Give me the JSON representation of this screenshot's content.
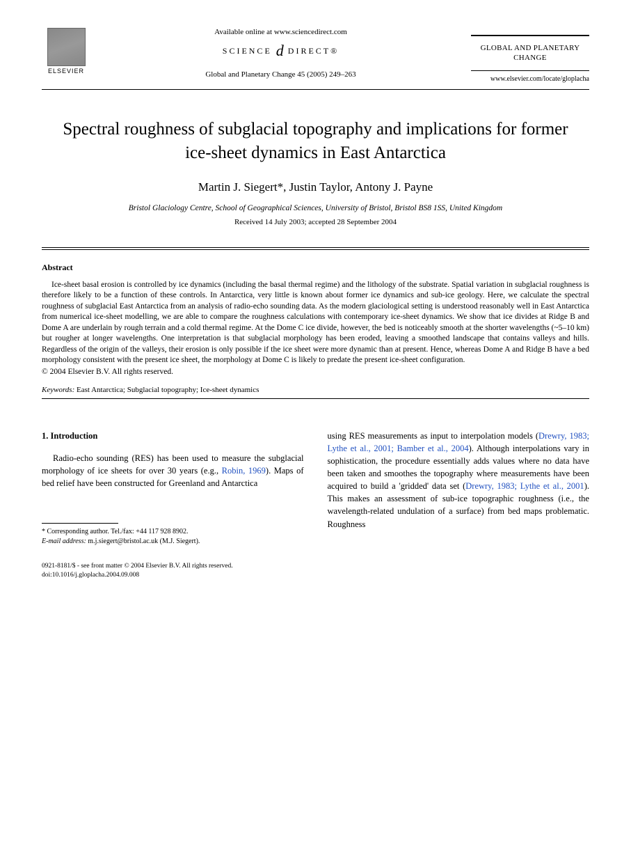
{
  "header": {
    "publisher_name": "ELSEVIER",
    "available_online": "Available online at www.sciencedirect.com",
    "science_direct_left": "SCIENCE",
    "science_direct_right": "DIRECT®",
    "citation": "Global and Planetary Change 45 (2005) 249–263",
    "journal_name": "GLOBAL AND PLANETARY CHANGE",
    "journal_url": "www.elsevier.com/locate/gloplacha"
  },
  "article": {
    "title": "Spectral roughness of subglacial topography and implications for former ice-sheet dynamics in East Antarctica",
    "authors": "Martin J. Siegert*, Justin Taylor, Antony J. Payne",
    "affiliation": "Bristol Glaciology Centre, School of Geographical Sciences, University of Bristol, Bristol BS8 1SS, United Kingdom",
    "dates": "Received 14 July 2003; accepted 28 September 2004"
  },
  "abstract": {
    "heading": "Abstract",
    "body": "Ice-sheet basal erosion is controlled by ice dynamics (including the basal thermal regime) and the lithology of the substrate. Spatial variation in subglacial roughness is therefore likely to be a function of these controls. In Antarctica, very little is known about former ice dynamics and sub-ice geology. Here, we calculate the spectral roughness of subglacial East Antarctica from an analysis of radio-echo sounding data. As the modern glaciological setting is understood reasonably well in East Antarctica from numerical ice-sheet modelling, we are able to compare the roughness calculations with contemporary ice-sheet dynamics. We show that ice divides at Ridge B and Dome A are underlain by rough terrain and a cold thermal regime. At the Dome C ice divide, however, the bed is noticeably smooth at the shorter wavelengths (~5–10 km) but rougher at longer wavelengths. One interpretation is that subglacial morphology has been eroded, leaving a smoothed landscape that contains valleys and hills. Regardless of the origin of the valleys, their erosion is only possible if the ice sheet were more dynamic than at present. Hence, whereas Dome A and Ridge B have a bed morphology consistent with the present ice sheet, the morphology at Dome C is likely to predate the present ice-sheet configuration.",
    "copyright": "© 2004 Elsevier B.V. All rights reserved.",
    "keywords_label": "Keywords:",
    "keywords": " East Antarctica; Subglacial topography; Ice-sheet dynamics"
  },
  "body": {
    "section_heading": "1. Introduction",
    "col1_para1_pre": "Radio-echo sounding (RES) has been used to measure the subglacial morphology of ice sheets for over 30 years (e.g., ",
    "col1_cite1": "Robin, 1969",
    "col1_para1_post": "). Maps of bed relief have been constructed for Greenland and Antarctica",
    "col2_pre": "using RES measurements as input to interpolation models (",
    "col2_cite1": "Drewry, 1983; Lythe et al., 2001; Bamber et al., 2004",
    "col2_mid1": "). Although interpolations vary in sophistication, the procedure essentially adds values where no data have been taken and smoothes the topography where measurements have been acquired to build a 'gridded' data set (",
    "col2_cite2": "Drewry, 1983; Lythe et al., 2001",
    "col2_post": "). This makes an assessment of sub-ice topographic roughness (i.e., the wavelength-related undulation of a surface) from bed maps problematic. Roughness"
  },
  "footnotes": {
    "corresponding": "* Corresponding author. Tel./fax: +44 117 928 8902.",
    "email_label": "E-mail address:",
    "email": " m.j.siegert@bristol.ac.uk (M.J. Siegert)."
  },
  "footer": {
    "line1": "0921-8181/$ - see front matter © 2004 Elsevier B.V. All rights reserved.",
    "line2": "doi:10.1016/j.gloplacha.2004.09.008"
  }
}
